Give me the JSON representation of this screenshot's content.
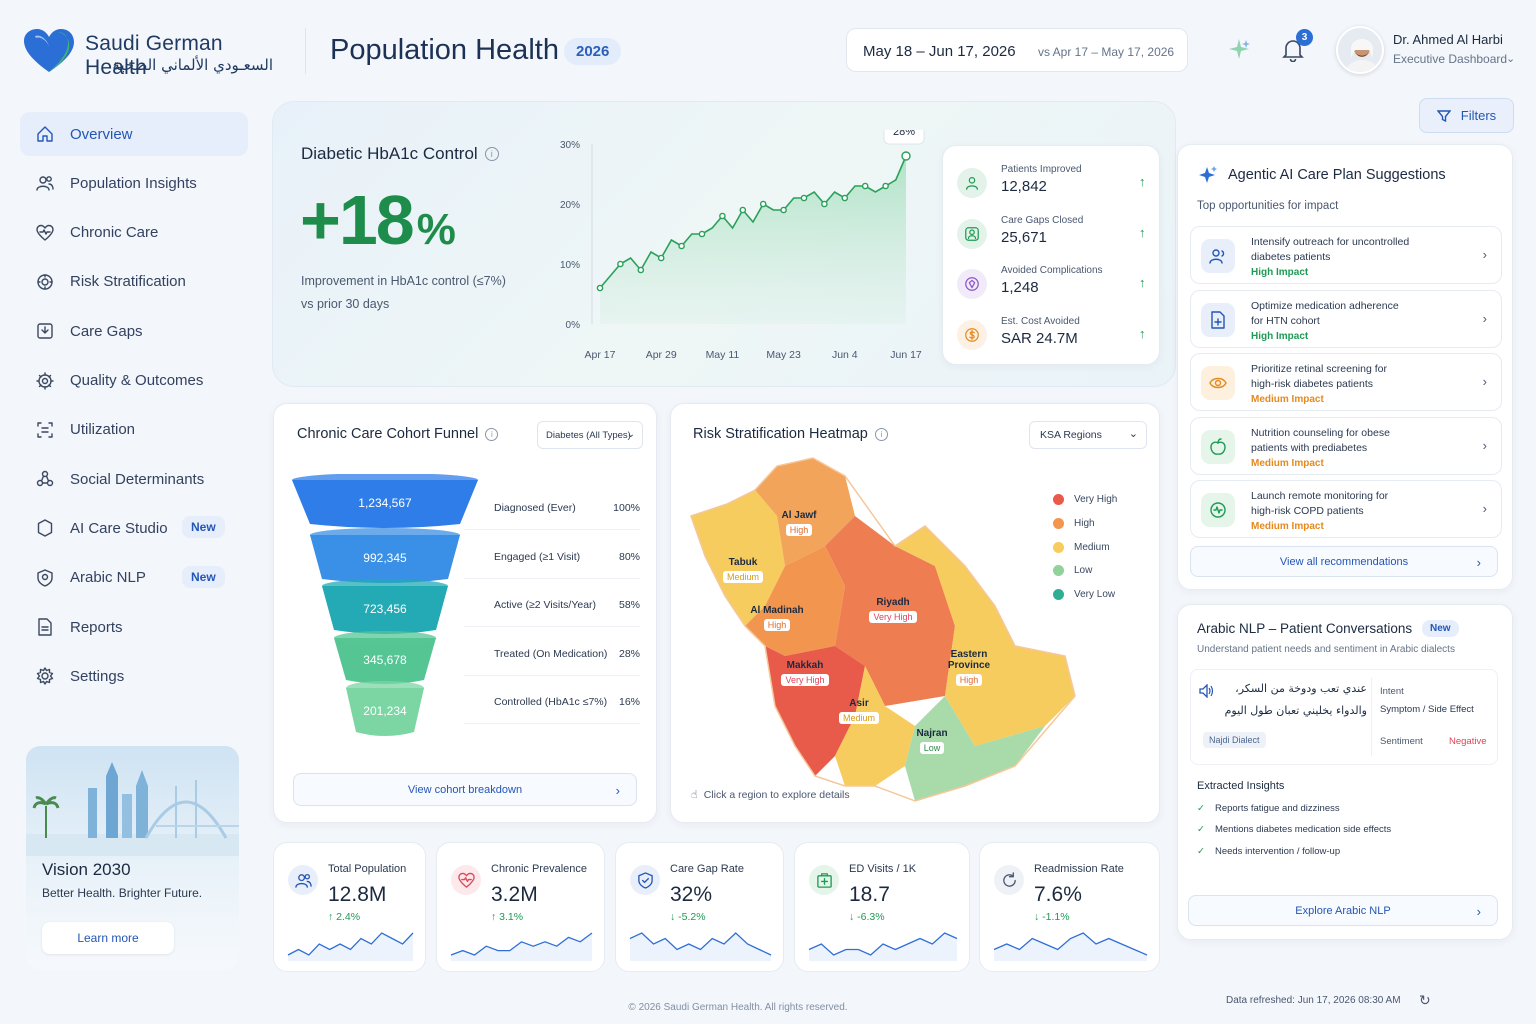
{
  "brand": {
    "name_en": "Saudi German Health",
    "name_ar": "السعـودي الألماني الصحية"
  },
  "header": {
    "title": "Population Health",
    "year": "2026",
    "date_range": "May 18 – Jun 17, 2026",
    "compare_range": "vs Apr 17 – May 17, 2026",
    "notifications": "3",
    "user_name": "Dr. Ahmed Al Harbi",
    "user_role": "Executive Dashboard",
    "filters_label": "Filters"
  },
  "sidebar": {
    "items": [
      {
        "label": "Overview",
        "icon": "home-icon"
      },
      {
        "label": "Population Insights",
        "icon": "users-icon"
      },
      {
        "label": "Chronic Care",
        "icon": "heart-icon"
      },
      {
        "label": "Risk Stratification",
        "icon": "risk-gear-icon"
      },
      {
        "label": "Care Gaps",
        "icon": "gap-icon"
      },
      {
        "label": "Quality & Outcomes",
        "icon": "quality-icon"
      },
      {
        "label": "Utilization",
        "icon": "utilization-icon"
      },
      {
        "label": "Social Determinants",
        "icon": "social-icon"
      },
      {
        "label": "AI Care Studio",
        "icon": "ai-icon",
        "badge": "New"
      },
      {
        "label": "Arabic NLP",
        "icon": "nlp-icon",
        "badge": "New"
      },
      {
        "label": "Reports",
        "icon": "report-icon"
      },
      {
        "label": "Settings",
        "icon": "settings-icon"
      }
    ],
    "vision": {
      "title": "Vision 2030",
      "subtitle": "Better Health. Brighter Future.",
      "button": "Learn more"
    }
  },
  "hba1c": {
    "title": "Diabetic HbA1c Control",
    "value": "+18",
    "unit": "%",
    "desc1": "Improvement in HbA1c control (≤7%)",
    "desc2": "vs prior 30 days",
    "callout": "28%"
  },
  "chart_data": {
    "type": "area",
    "x": [
      "Apr 17",
      "Apr 19",
      "Apr 21",
      "Apr 23",
      "Apr 25",
      "Apr 27",
      "Apr 29",
      "May 1",
      "May 3",
      "May 5",
      "May 7",
      "May 9",
      "May 11",
      "May 13",
      "May 15",
      "May 17",
      "May 19",
      "May 21",
      "May 23",
      "May 25",
      "May 27",
      "May 29",
      "May 31",
      "Jun 2",
      "Jun 4",
      "Jun 6",
      "Jun 8",
      "Jun 10",
      "Jun 12",
      "Jun 14",
      "Jun 17"
    ],
    "values": [
      6,
      8,
      10,
      11,
      9,
      12,
      11,
      14,
      13,
      15,
      15,
      16,
      18,
      16,
      19,
      17,
      20,
      19,
      19,
      21,
      21,
      22,
      20,
      22,
      21,
      23,
      23,
      22,
      23,
      24,
      28
    ],
    "x_ticks": [
      "Apr 17",
      "Apr 29",
      "May 11",
      "May 23",
      "Jun 4",
      "Jun 17"
    ],
    "y_ticks": [
      "0%",
      "10%",
      "20%",
      "30%"
    ],
    "ylim": [
      0,
      30
    ],
    "title": "",
    "xlabel": "",
    "ylabel": "",
    "grid": false
  },
  "stats": [
    {
      "label": "Patients Improved",
      "value": "12,842",
      "icon": "patients-icon",
      "color": "#1f9a55"
    },
    {
      "label": "Care Gaps Closed",
      "value": "25,671",
      "icon": "care-gap-icon",
      "color": "#1f9a55"
    },
    {
      "label": "Avoided Complications",
      "value": "1,248",
      "icon": "shield-icon",
      "color": "#8e54c9"
    },
    {
      "label": "Est. Cost Avoided",
      "value": "SAR 24.7M",
      "icon": "money-icon",
      "color": "#e58a1f"
    }
  ],
  "funnel": {
    "title": "Chronic Care Cohort Funnel",
    "dropdown": "Diabetes (All Types)",
    "stages": [
      {
        "value": "1,234,567",
        "label": "Diagnosed (Ever)",
        "pct": "100%",
        "color": "#2f7de8"
      },
      {
        "value": "992,345",
        "label": "Engaged (≥1 Visit)",
        "pct": "80%",
        "color": "#3a8fe6"
      },
      {
        "value": "723,456",
        "label": "Active (≥2 Visits/Year)",
        "pct": "58%",
        "color": "#23aab5"
      },
      {
        "value": "345,678",
        "label": "Treated (On Medication)",
        "pct": "28%",
        "color": "#55c594"
      },
      {
        "value": "201,234",
        "label": "Controlled (HbA1c ≤7%)",
        "pct": "16%",
        "color": "#7bd6a4"
      }
    ],
    "button": "View cohort breakdown"
  },
  "heatmap": {
    "title": "Risk Stratification Heatmap",
    "dropdown": "KSA Regions",
    "hint": "Click a region to explore details",
    "legend": [
      {
        "label": "Very High",
        "color": "#e85a4a"
      },
      {
        "label": "High",
        "color": "#f2954f"
      },
      {
        "label": "Medium",
        "color": "#f7cc5e"
      },
      {
        "label": "Low",
        "color": "#8fd29a"
      },
      {
        "label": "Very Low",
        "color": "#2fae96"
      }
    ],
    "regions": [
      {
        "name": "Al Jawf",
        "level": "High"
      },
      {
        "name": "Tabuk",
        "level": "Medium"
      },
      {
        "name": "Al Madinah",
        "level": "High"
      },
      {
        "name": "Riyadh",
        "level": "Very High"
      },
      {
        "name": "Eastern Province",
        "level": "High"
      },
      {
        "name": "Makkah",
        "level": "Very High"
      },
      {
        "name": "Asir",
        "level": "Medium"
      },
      {
        "name": "Najran",
        "level": "Low"
      }
    ]
  },
  "ai": {
    "title": "Agentic AI Care Plan Suggestions",
    "subtitle": "Top opportunities for impact",
    "items": [
      {
        "line1": "Intensify outreach for uncontrolled",
        "line2": "diabetes patients",
        "impact": "High Impact",
        "impact_color": "#1f9a55",
        "icon": "outreach-icon",
        "bg": "#e8effb",
        "fg": "#2456b6"
      },
      {
        "line1": "Optimize medication adherence",
        "line2": "for HTN cohort",
        "impact": "High Impact",
        "impact_color": "#1f9a55",
        "icon": "medication-icon",
        "bg": "#e8effb",
        "fg": "#2456b6"
      },
      {
        "line1": "Prioritize retinal screening for",
        "line2": "high-risk diabetes patients",
        "impact": "Medium Impact",
        "impact_color": "#e58a1f",
        "icon": "eye-icon",
        "bg": "#fdf0df",
        "fg": "#e58a1f"
      },
      {
        "line1": "Nutrition counseling for obese",
        "line2": "patients with prediabetes",
        "impact": "Medium Impact",
        "impact_color": "#e58a1f",
        "icon": "apple-icon",
        "bg": "#e5f5ea",
        "fg": "#1f9a55"
      },
      {
        "line1": "Launch remote monitoring for",
        "line2": "high-risk COPD patients",
        "impact": "Medium Impact",
        "impact_color": "#e58a1f",
        "icon": "monitor-icon",
        "bg": "#e5f5ea",
        "fg": "#1f9a55"
      }
    ],
    "button": "View all recommendations"
  },
  "nlp": {
    "title": "Arabic NLP – Patient Conversations",
    "badge": "New",
    "subtitle": "Understand patient needs and sentiment in Arabic dialects",
    "quote1": "عندي تعب ودوخة من السكر،",
    "quote2": "والدواء يخليني تعبان طول اليوم",
    "dialect": "Najdi Dialect",
    "intent_label": "Intent",
    "intent_value": "Symptom / Side Effect",
    "sentiment_label": "Sentiment",
    "sentiment_value": "Negative",
    "insights_title": "Extracted Insights",
    "insights": [
      "Reports fatigue and dizziness",
      "Mentions diabetes medication side effects",
      "Needs intervention / follow-up"
    ],
    "button": "Explore Arabic NLP"
  },
  "kpis": [
    {
      "label": "Total Population",
      "value": "12.8M",
      "change": "↑ 2.4%",
      "up": true,
      "icon": "population-icon",
      "color": "#2456b6",
      "bg": "#e8effb",
      "spark": [
        4,
        5,
        4,
        6,
        5,
        6,
        5,
        7,
        6,
        8,
        7,
        6,
        8
      ]
    },
    {
      "label": "Chronic Prevalence",
      "value": "3.2M",
      "change": "↑ 3.1%",
      "up": true,
      "icon": "heart-icon",
      "color": "#e0445a",
      "bg": "#fde9ec",
      "spark": [
        3,
        4,
        3,
        5,
        4,
        4,
        6,
        5,
        6,
        5,
        7,
        6,
        8
      ]
    },
    {
      "label": "Care Gap Rate",
      "value": "32%",
      "change": "↓ -5.2%",
      "up": false,
      "icon": "shield-check-icon",
      "color": "#2456b6",
      "bg": "#e8effb",
      "spark": [
        6,
        7,
        5,
        6,
        4,
        5,
        4,
        6,
        5,
        7,
        5,
        4,
        3
      ]
    },
    {
      "label": "ED Visits / 1K",
      "value": "18.7",
      "change": "↓ -6.3%",
      "up": false,
      "icon": "hospital-icon",
      "color": "#1f9a55",
      "bg": "#e5f5ea",
      "spark": [
        5,
        6,
        4,
        5,
        5,
        4,
        6,
        5,
        6,
        7,
        6,
        8,
        7
      ]
    },
    {
      "label": "Readmission Rate",
      "value": "7.6%",
      "change": "↓ -1.1%",
      "up": false,
      "icon": "refresh-icon",
      "color": "#4a5870",
      "bg": "#eef1f5",
      "spark": [
        4,
        5,
        4,
        6,
        5,
        4,
        6,
        7,
        5,
        6,
        5,
        4,
        3
      ]
    }
  ],
  "footer": {
    "copyright": "© 2026 Saudi German Health. All rights reserved.",
    "refreshed": "Data refreshed: Jun 17, 2026 08:30 AM"
  }
}
